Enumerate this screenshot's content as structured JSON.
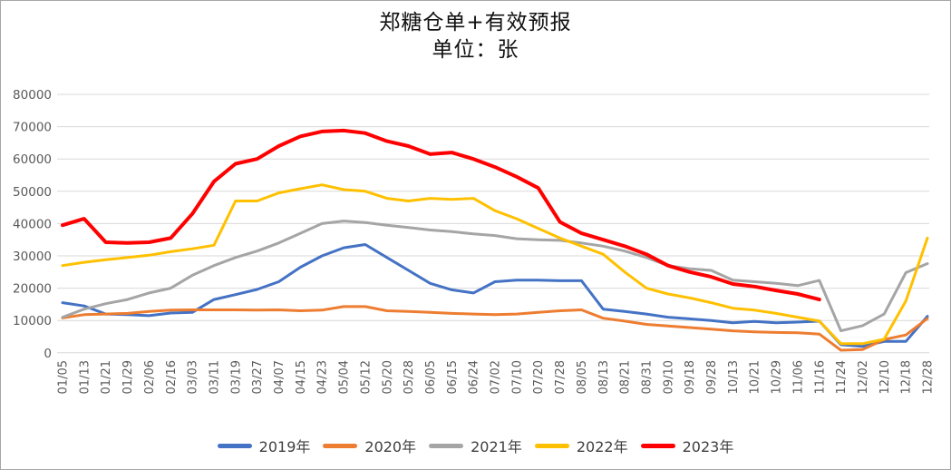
{
  "title": "郑糖仓单+有效预报",
  "subtitle": "单位：张",
  "colors": {
    "grid": "#d9d9d9",
    "axis_text": "#595959",
    "legend_text": "#404040",
    "background": "#ffffff"
  },
  "chart_data": {
    "type": "line",
    "title": "郑糖仓单+有效预报",
    "subtitle": "单位：张",
    "ylabel": "",
    "xlabel": "",
    "ylim": [
      0,
      80000
    ],
    "ytick_step": 10000,
    "ytick_labels": [
      "0",
      "10000",
      "20000",
      "30000",
      "40000",
      "50000",
      "60000",
      "70000",
      "80000"
    ],
    "grid": true,
    "legend_position": "bottom",
    "categories": [
      "01/05",
      "01/13",
      "01/21",
      "01/29",
      "02/06",
      "02/16",
      "03/03",
      "03/11",
      "03/19",
      "03/27",
      "04/07",
      "04/15",
      "04/23",
      "05/04",
      "05/12",
      "05/20",
      "05/28",
      "06/05",
      "06/15",
      "06/24",
      "07/02",
      "07/10",
      "07/20",
      "07/28",
      "08/05",
      "08/13",
      "08/21",
      "08/31",
      "09/10",
      "09/18",
      "09/28",
      "10/13",
      "10/21",
      "10/29",
      "11/06",
      "11/16",
      "11/24",
      "12/02",
      "12/10",
      "12/18",
      "12/28"
    ],
    "series": [
      {
        "name": "2019年",
        "color": "#4472C4",
        "line_width": 3,
        "values": [
          15500,
          14500,
          12000,
          11800,
          11500,
          12300,
          12500,
          16500,
          18000,
          19600,
          22000,
          26500,
          30000,
          32500,
          33500,
          29500,
          25500,
          21500,
          19500,
          18500,
          22000,
          22500,
          22500,
          22300,
          22300,
          13500,
          12800,
          12000,
          11000,
          10500,
          10000,
          9300,
          9700,
          9300,
          9500,
          9800,
          2500,
          2000,
          3500,
          3500,
          11300
        ]
      },
      {
        "name": "2020年",
        "color": "#ED7D31",
        "line_width": 3,
        "values": [
          10800,
          11800,
          12000,
          12200,
          12800,
          13200,
          13300,
          13300,
          13300,
          13200,
          13300,
          13000,
          13200,
          14300,
          14300,
          13000,
          12800,
          12500,
          12200,
          12000,
          11800,
          12000,
          12500,
          13000,
          13300,
          10700,
          9800,
          8800,
          8300,
          7800,
          7300,
          6800,
          6500,
          6300,
          6200,
          5800,
          800,
          1000,
          4100,
          5500,
          10600
        ]
      },
      {
        "name": "2021年",
        "color": "#A5A5A5",
        "line_width": 3,
        "values": [
          11000,
          13500,
          15200,
          16500,
          18500,
          20000,
          24000,
          27000,
          29500,
          31500,
          34000,
          37000,
          40000,
          40800,
          40300,
          39500,
          38800,
          38000,
          37500,
          36800,
          36300,
          35300,
          35000,
          34800,
          34000,
          33000,
          31500,
          29500,
          27000,
          26000,
          25500,
          22500,
          22000,
          21500,
          20800,
          22400,
          6800,
          8400,
          12000,
          24800,
          27600
        ]
      },
      {
        "name": "2022年",
        "color": "#FFC000",
        "line_width": 3,
        "values": [
          27000,
          28000,
          28800,
          29500,
          30200,
          31300,
          32200,
          33300,
          47000,
          47000,
          49500,
          50800,
          52000,
          50500,
          50000,
          47800,
          47000,
          47800,
          47500,
          47800,
          44000,
          41500,
          38500,
          35500,
          33000,
          30500,
          25000,
          20000,
          18200,
          17000,
          15500,
          13800,
          13200,
          12200,
          11000,
          9800,
          2800,
          2800,
          4200,
          16000,
          35500
        ]
      },
      {
        "name": "2023年",
        "color": "#FF0000",
        "line_width": 4,
        "values": [
          39500,
          41500,
          34200,
          34000,
          34200,
          35500,
          43000,
          53000,
          58500,
          60000,
          64000,
          67000,
          68500,
          68800,
          68000,
          65500,
          64000,
          61500,
          62000,
          60000,
          57500,
          54500,
          51000,
          40500,
          37000,
          35000,
          33000,
          30500,
          27000,
          25000,
          23500,
          21300,
          20500,
          19300,
          18200,
          16500,
          null,
          null,
          null,
          null,
          null
        ]
      }
    ]
  }
}
